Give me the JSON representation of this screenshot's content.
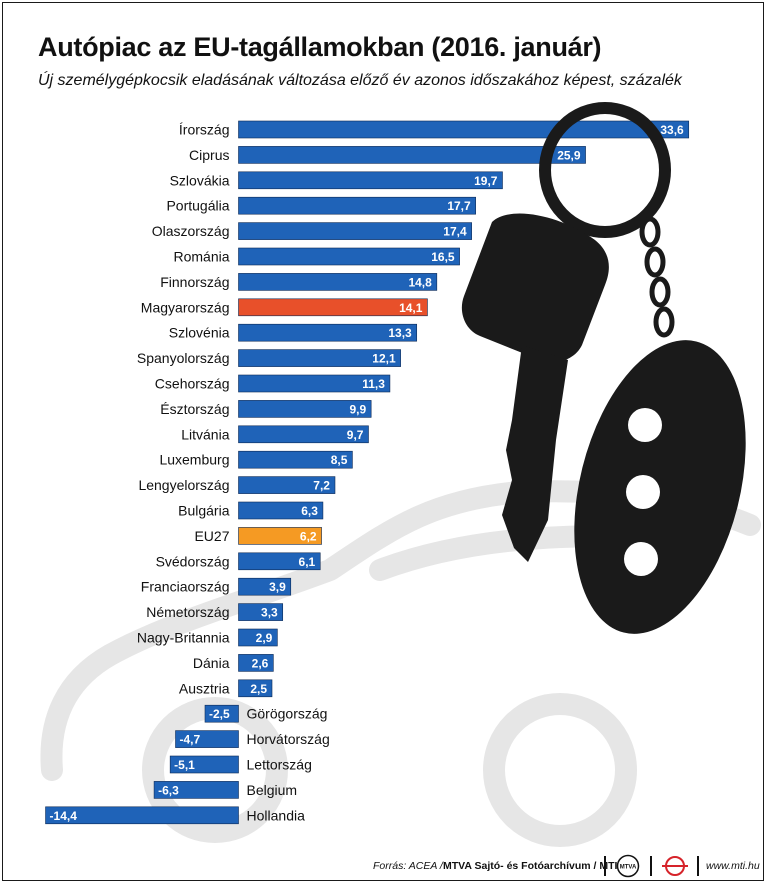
{
  "header": {
    "title": "Autópiac az EU-tagállamokban (2016. január)",
    "subtitle": "Új személygépkocsik eladásának változása előző év azonos időszakához képest, százalék"
  },
  "chart_data": {
    "type": "bar",
    "orientation": "horizontal",
    "title": "Autópiac az EU-tagállamokban (2016. január)",
    "xlabel": "",
    "ylabel": "százalék",
    "categories": [
      "Írország",
      "Ciprus",
      "Szlovákia",
      "Portugália",
      "Olaszország",
      "Románia",
      "Finnország",
      "Magyarország",
      "Szlovénia",
      "Spanyolország",
      "Csehország",
      "Észtország",
      "Litvánia",
      "Luxemburg",
      "Lengyelország",
      "Bulgária",
      "EU27",
      "Svédország",
      "Franciaország",
      "Németország",
      "Nagy-Britannia",
      "Dánia",
      "Ausztria",
      "Görögország",
      "Horvátország",
      "Lettország",
      "Belgium",
      "Hollandia"
    ],
    "values": [
      33.6,
      25.9,
      19.7,
      17.7,
      17.4,
      16.5,
      14.8,
      14.1,
      13.3,
      12.1,
      11.3,
      9.9,
      9.7,
      8.5,
      7.2,
      6.3,
      6.2,
      6.1,
      3.9,
      3.3,
      2.9,
      2.6,
      2.5,
      -2.5,
      -4.7,
      -5.1,
      -6.3,
      -14.4
    ],
    "value_labels": [
      "33,6",
      "25,9",
      "19,7",
      "17,7",
      "17,4",
      "16,5",
      "14,8",
      "14,1",
      "13,3",
      "12,1",
      "11,3",
      "9,9",
      "9,7",
      "8,5",
      "7,2",
      "6,3",
      "6,2",
      "6,1",
      "3,9",
      "3,3",
      "2,9",
      "2,6",
      "2,5",
      "-2,5",
      "-4,7",
      "-5,1",
      "-6,3",
      "-14,4"
    ],
    "highlight": {
      "Magyarország": "#e8502a",
      "EU27": "#f59a23"
    },
    "bar_color": "#1f63b8",
    "xlim": [
      -14.4,
      33.6
    ]
  },
  "footer": {
    "source_prefix": "Forrás: ACEA /",
    "source_bold": "MTVA Sajtó- és Fotóarchívum / MTI",
    "logo_text": "MTVA",
    "url": "www.mti.hu"
  }
}
